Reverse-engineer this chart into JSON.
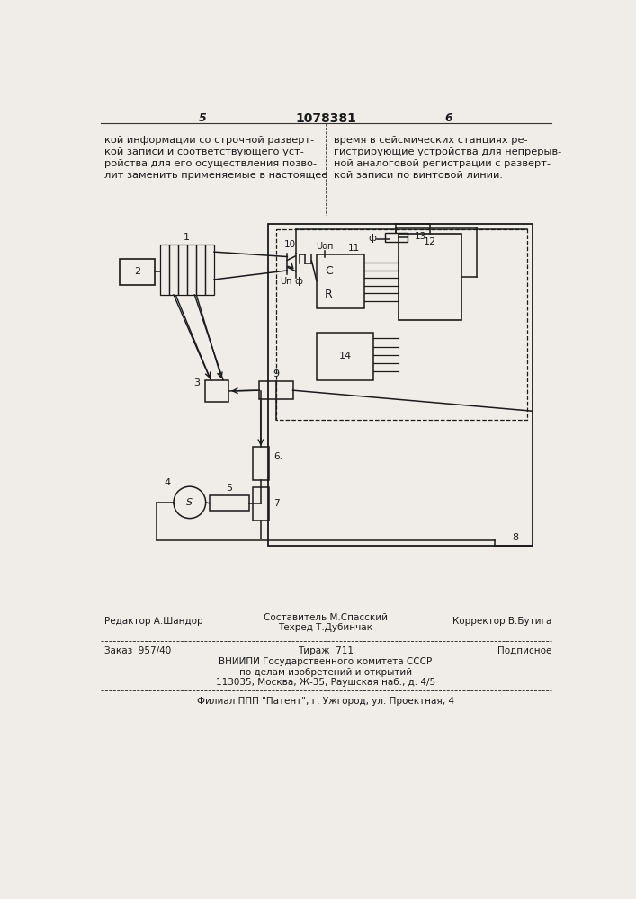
{
  "page_number_left": "5",
  "page_number_center": "1078381",
  "page_number_right": "6",
  "left_text": [
    "кой информации со строчной разверт-",
    "кой записи и соответствующего уст-",
    "ройства для его осуществления позво-",
    "лит заменить применяемые в настоящее"
  ],
  "right_text": [
    "время в сейсмических станциях ре-",
    "гистрирующие устройства для непрерыв-",
    "ной аналоговой регистрации с разверт-",
    "кой записи по винтовой линии."
  ],
  "footer_line1_left": "Редактор А.Шандор",
  "footer_line1_center_top": "Составитель М.Спасский",
  "footer_line1_center_bot": "Техред Т.Дубинчак",
  "footer_line1_right": "Корректор В.Бутига",
  "footer_line2_left": "Заказ  957/40",
  "footer_line2_center": "Тираж  711",
  "footer_line2_right": "Подписное",
  "footer_line3": "ВНИИПИ Государственного комитета СССР",
  "footer_line4": "по делам изобретений и открытий",
  "footer_line5": "113035, Москва, Ж-35, Раушская наб., д. 4/5",
  "footer_line6": "Филиал ППП \"Патент\", г. Ужгород, ул. Проектная, 4",
  "bg_color": "#f0ede8",
  "text_color": "#1a1a1a",
  "line_color": "#333333"
}
